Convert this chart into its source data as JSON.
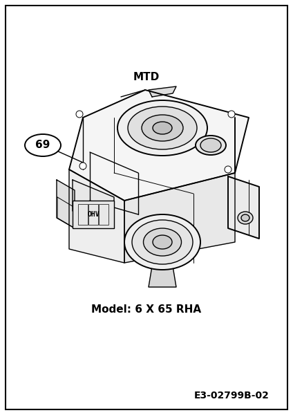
{
  "title_text": "MTD",
  "model_text": "Model: 6 X 65 RHA",
  "part_number_text": "E3-02799B-02",
  "label_69": "69",
  "bg_color": "#ffffff",
  "line_color": "#000000",
  "title_fontsize": 11,
  "model_fontsize": 11,
  "part_number_fontsize": 10,
  "label_fontsize": 11,
  "fig_width": 4.24,
  "fig_height": 6.0,
  "dpi": 100,
  "border_color": "#000000",
  "border_linewidth": 1.5
}
